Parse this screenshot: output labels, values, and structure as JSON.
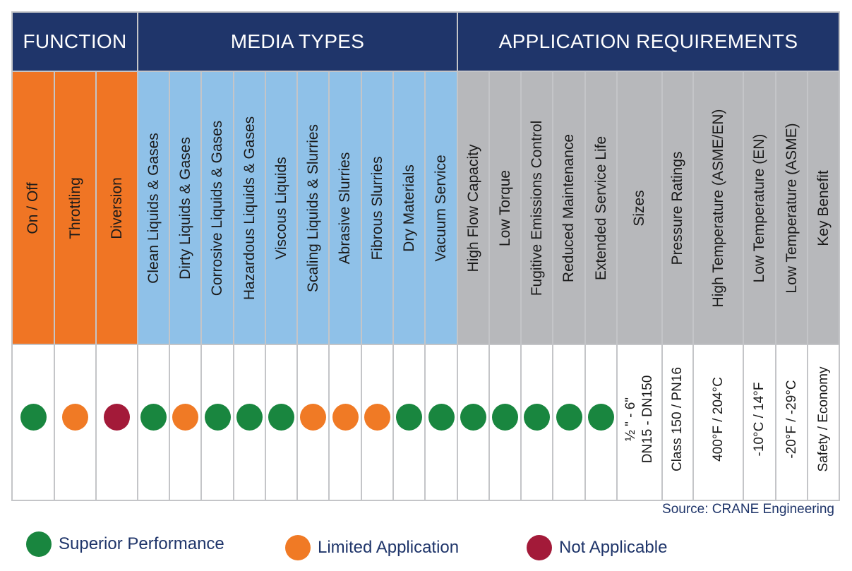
{
  "colors": {
    "navy": "#1f356a",
    "function_bg": "#f07524",
    "media_bg": "#8fc1e8",
    "app_bg": "#b7b8bb",
    "superior": "#19863f",
    "limited": "#f07a25",
    "not_applicable": "#a31a39"
  },
  "groups": [
    {
      "key": "function",
      "label": "FUNCTION"
    },
    {
      "key": "media",
      "label": "MEDIA TYPES"
    },
    {
      "key": "app",
      "label": "APPLICATION REQUIREMENTS"
    }
  ],
  "chart_data": {
    "type": "table",
    "columns": [
      {
        "group": "function",
        "label": "On / Off",
        "rating": "superior"
      },
      {
        "group": "function",
        "label": "Throttling",
        "rating": "limited"
      },
      {
        "group": "function",
        "label": "Diversion",
        "rating": "not_applicable"
      },
      {
        "group": "media",
        "label": "Clean Liquids & Gases",
        "rating": "superior"
      },
      {
        "group": "media",
        "label": "Dirty Liquids & Gases",
        "rating": "limited"
      },
      {
        "group": "media",
        "label": "Corrosive Liquids & Gases",
        "rating": "superior"
      },
      {
        "group": "media",
        "label": "Hazardous Liquids & Gases",
        "rating": "superior"
      },
      {
        "group": "media",
        "label": "Viscous Liquids",
        "rating": "superior"
      },
      {
        "group": "media",
        "label": "Scaling Liquids & Slurries",
        "rating": "limited"
      },
      {
        "group": "media",
        "label": "Abrasive Slurries",
        "rating": "limited"
      },
      {
        "group": "media",
        "label": "Fibrous Slurries",
        "rating": "limited"
      },
      {
        "group": "media",
        "label": "Dry Materials",
        "rating": "superior"
      },
      {
        "group": "media",
        "label": "Vacuum Service",
        "rating": "superior"
      },
      {
        "group": "app",
        "label": "High Flow Capacity",
        "rating": "superior"
      },
      {
        "group": "app",
        "label": "Low Torque",
        "rating": "superior"
      },
      {
        "group": "app",
        "label": "Fugitive Emissions Control",
        "rating": "superior"
      },
      {
        "group": "app",
        "label": "Reduced Maintenance",
        "rating": "superior"
      },
      {
        "group": "app",
        "label": "Extended Service Life",
        "rating": "superior"
      },
      {
        "group": "app",
        "label": "Sizes",
        "value": [
          "½ \" - 6\"",
          "DN15 - DN150"
        ]
      },
      {
        "group": "app",
        "label": "Pressure Ratings",
        "value": [
          "Class 150 / PN16"
        ]
      },
      {
        "group": "app",
        "label": "High Temperature (ASME/EN)",
        "value": [
          "400°F / 204°C"
        ]
      },
      {
        "group": "app",
        "label": "Low Temperature (EN)",
        "value": [
          "-10°C / 14°F"
        ]
      },
      {
        "group": "app",
        "label": "Low Temperature (ASME)",
        "value": [
          "-20°F / -29°C"
        ]
      },
      {
        "group": "app",
        "label": "Key Benefit",
        "value": [
          "Safety / Economy"
        ]
      }
    ]
  },
  "source": "Source: CRANE Engineering",
  "legend": [
    {
      "rating": "superior",
      "label": "Superior Performance"
    },
    {
      "rating": "limited",
      "label": "Limited Application"
    },
    {
      "rating": "not_applicable",
      "label": "Not Applicable"
    }
  ]
}
